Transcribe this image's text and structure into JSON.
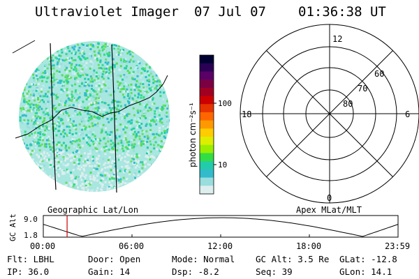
{
  "header": {
    "title": "Ultraviolet Imager",
    "date": "07 Jul 07",
    "time": "01:36:38 UT"
  },
  "colorbar": {
    "unit_label": "photon cm⁻²s⁻¹",
    "ticks": [
      "100",
      "10"
    ],
    "tick_values": [
      100,
      10
    ],
    "colors": [
      "#000033",
      "#2a0055",
      "#5a0066",
      "#7a0044",
      "#a00022",
      "#cc0000",
      "#e63300",
      "#ff6600",
      "#ff9900",
      "#ffcc00",
      "#ddee00",
      "#99ee00",
      "#33dd44",
      "#22ccaa",
      "#33bbcc",
      "#99dddd",
      "#ddeeee"
    ]
  },
  "polar_grid": {
    "mlt_labels": [
      "12",
      "18",
      "6",
      "0"
    ],
    "lat_labels": [
      "60",
      "70",
      "80"
    ]
  },
  "projection_labels": {
    "left": "Geographic Lat/Lon",
    "right": "Apex MLat/MLT"
  },
  "altitude_plot": {
    "ylabel": "GC Alt",
    "yticks": [
      "9.0",
      "1.8"
    ],
    "xticks": [
      "00:00",
      "06:00",
      "12:00",
      "18:00",
      "23:59"
    ],
    "current_time_hours": 1.61,
    "marker_color": "#cc0000"
  },
  "info": {
    "flt": "Flt: LBHL",
    "ip": "IP: 36.0",
    "door": "Door: Open",
    "gain": "Gain: 14",
    "mode": "Mode: Normal",
    "dsp": "Dsp:   -8.2",
    "gc_alt": "GC Alt: 3.5 Re",
    "seq": "Seq: 39",
    "glat": "GLat: -12.8",
    "glon": "GLon:  14.1"
  }
}
